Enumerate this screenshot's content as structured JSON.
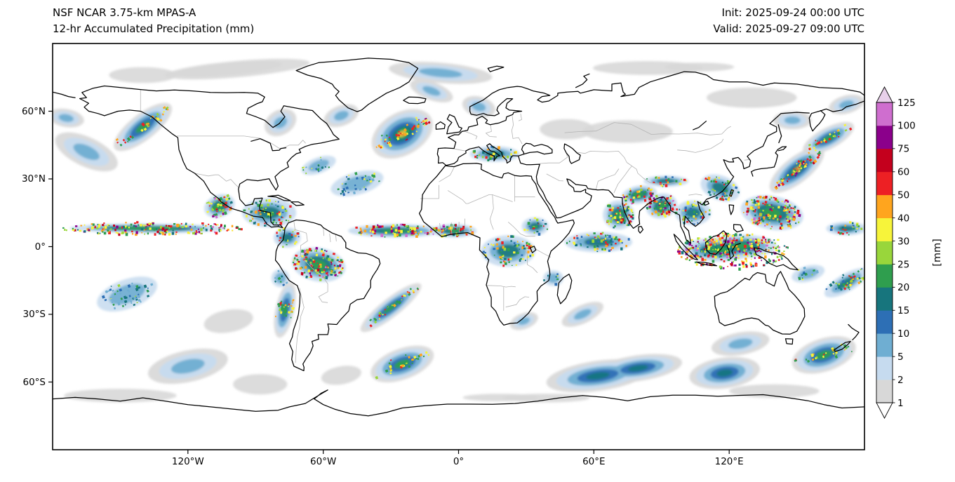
{
  "header": {
    "title_line1": "NSF NCAR 3.75-km MPAS-A",
    "title_line2": "12-hr Accumulated Precipitation (mm)",
    "init_text": "Init: 2025-09-24 00:00 UTC",
    "valid_text": "Valid: 2025-09-27 09:00 UTC"
  },
  "axes": {
    "lat_ticks": [
      {
        "label": "60°N",
        "value": 60
      },
      {
        "label": "30°N",
        "value": 30
      },
      {
        "label": "0°",
        "value": 0
      },
      {
        "label": "30°S",
        "value": -30
      },
      {
        "label": "60°S",
        "value": -60
      }
    ],
    "lon_ticks": [
      {
        "label": "120°W",
        "value": -120
      },
      {
        "label": "60°W",
        "value": -60
      },
      {
        "label": "0°",
        "value": 0
      },
      {
        "label": "60°E",
        "value": 60
      },
      {
        "label": "120°E",
        "value": 120
      }
    ]
  },
  "colorbar": {
    "unit_label": "[mm]",
    "tick_labels": [
      "1",
      "2",
      "5",
      "10",
      "15",
      "20",
      "25",
      "30",
      "40",
      "50",
      "60",
      "75",
      "100",
      "125"
    ]
  },
  "chart_data": {
    "type": "heatmap",
    "subtype": "global_precipitation_map",
    "projection": "equirectangular",
    "lon_range": [
      -180,
      180
    ],
    "lat_range": [
      -90,
      90
    ],
    "units": "mm",
    "model": "NSF NCAR 3.75-km MPAS-A",
    "title": "12-hr Accumulated Precipitation (mm)",
    "init_time": "2025-09-24 00:00 UTC",
    "valid_time": "2025-09-27 09:00 UTC",
    "levels_mm": [
      1,
      2,
      5,
      10,
      15,
      20,
      25,
      30,
      40,
      50,
      60,
      75,
      100,
      125
    ],
    "bin_colors": [
      "#d8d8d8",
      "#c6dbef",
      "#6faed2",
      "#2d6fb5",
      "#17757d",
      "#2f9e4e",
      "#99d63b",
      "#f7f43a",
      "#ffa51e",
      "#ed2024",
      "#c4001d",
      "#8b008b",
      "#cf6ecf"
    ],
    "under_color": "#ffffff",
    "over_color": "#e8d0ea",
    "legend_position": "right",
    "grid": false,
    "precip_regions": [
      {
        "name": "arctic-canada-gray",
        "lon": -95,
        "lat": 80,
        "w_deg": 80,
        "h_deg": 9,
        "rot_deg": -5,
        "intensity": "light",
        "style": "stratiform"
      },
      {
        "name": "beaufort-gray",
        "lon": -140,
        "lat": 76,
        "w_deg": 30,
        "h_deg": 7,
        "rot_deg": 0,
        "intensity": "light",
        "style": "stratiform"
      },
      {
        "name": "arctic-atlantic",
        "lon": -8,
        "lat": 77,
        "w_deg": 46,
        "h_deg": 9,
        "rot_deg": 5,
        "intensity": "moderate",
        "style": "stratiform"
      },
      {
        "name": "arctic-siberia",
        "lon": 95,
        "lat": 79,
        "w_deg": 55,
        "h_deg": 7,
        "rot_deg": 0,
        "intensity": "light",
        "style": "stratiform"
      },
      {
        "name": "east-siberia-gray",
        "lon": 130,
        "lat": 66,
        "w_deg": 40,
        "h_deg": 9,
        "rot_deg": 0,
        "intensity": "light",
        "style": "stratiform"
      },
      {
        "name": "chukchi-streaks",
        "lon": 172,
        "lat": 63,
        "w_deg": 16,
        "h_deg": 8,
        "rot_deg": -15,
        "intensity": "moderate",
        "style": "stratiform"
      },
      {
        "name": "bering-sea",
        "lon": -174,
        "lat": 57,
        "w_deg": 16,
        "h_deg": 8,
        "rot_deg": 10,
        "intensity": "moderate",
        "style": "stratiform"
      },
      {
        "name": "gulf-of-alaska-front",
        "lon": -140,
        "lat": 53,
        "w_deg": 30,
        "h_deg": 11,
        "rot_deg": -38,
        "intensity": "heavy",
        "style": "frontal"
      },
      {
        "name": "north-pacific-central",
        "lon": -165,
        "lat": 42,
        "w_deg": 30,
        "h_deg": 13,
        "rot_deg": 25,
        "intensity": "moderate",
        "style": "stratiform"
      },
      {
        "name": "hudson-bay-streaks",
        "lon": -79,
        "lat": 55,
        "w_deg": 15,
        "h_deg": 11,
        "rot_deg": -30,
        "intensity": "moderate",
        "style": "stratiform"
      },
      {
        "name": "labrador-sea",
        "lon": -52,
        "lat": 58,
        "w_deg": 16,
        "h_deg": 9,
        "rot_deg": -20,
        "intensity": "moderate",
        "style": "stratiform"
      },
      {
        "name": "iceland-greenland-sea",
        "lon": -12,
        "lat": 69,
        "w_deg": 20,
        "h_deg": 8,
        "rot_deg": 20,
        "intensity": "moderate",
        "style": "stratiform"
      },
      {
        "name": "scandinavia-streaks",
        "lon": 9,
        "lat": 62,
        "w_deg": 15,
        "h_deg": 9,
        "rot_deg": 15,
        "intensity": "moderate",
        "style": "stratiform"
      },
      {
        "name": "north-atlantic-storm",
        "lon": -25,
        "lat": 50,
        "w_deg": 28,
        "h_deg": 18,
        "rot_deg": -30,
        "intensity": "extreme",
        "style": "frontal"
      },
      {
        "name": "central-atlantic-showers",
        "lon": -45,
        "lat": 28,
        "w_deg": 24,
        "h_deg": 10,
        "rot_deg": -15,
        "intensity": "moderate",
        "style": "convective"
      },
      {
        "name": "gulf-stream-showers",
        "lon": -62,
        "lat": 36,
        "w_deg": 16,
        "h_deg": 7,
        "rot_deg": -20,
        "intensity": "moderate",
        "style": "convective"
      },
      {
        "name": "east-pacific-itcz",
        "lon": -135,
        "lat": 8,
        "w_deg": 85,
        "h_deg": 6,
        "rot_deg": 0,
        "intensity": "extreme",
        "style": "convective"
      },
      {
        "name": "mexico-west-coast-storm",
        "lon": -106,
        "lat": 18,
        "w_deg": 14,
        "h_deg": 10,
        "rot_deg": -20,
        "intensity": "extreme",
        "style": "convective"
      },
      {
        "name": "caribbean-central-america",
        "lon": -84,
        "lat": 15,
        "w_deg": 24,
        "h_deg": 13,
        "rot_deg": 0,
        "intensity": "heavy",
        "style": "convective"
      },
      {
        "name": "atlantic-itcz",
        "lon": -28,
        "lat": 7,
        "w_deg": 42,
        "h_deg": 6,
        "rot_deg": 0,
        "intensity": "extreme",
        "style": "convective"
      },
      {
        "name": "colombia-panama",
        "lon": -76,
        "lat": 4,
        "w_deg": 12,
        "h_deg": 9,
        "rot_deg": 0,
        "intensity": "heavy",
        "style": "convective"
      },
      {
        "name": "amazon-basin",
        "lon": -62,
        "lat": -8,
        "w_deg": 24,
        "h_deg": 15,
        "rot_deg": 10,
        "intensity": "extreme",
        "style": "convective"
      },
      {
        "name": "peru-coast-showers",
        "lon": -79,
        "lat": -14,
        "w_deg": 8,
        "h_deg": 8,
        "rot_deg": -30,
        "intensity": "moderate",
        "style": "convective"
      },
      {
        "name": "chile-coast-front",
        "lon": -77,
        "lat": -28,
        "w_deg": 8,
        "h_deg": 24,
        "rot_deg": 12,
        "intensity": "heavy",
        "style": "frontal"
      },
      {
        "name": "south-atlantic-convergence",
        "lon": -30,
        "lat": -27,
        "w_deg": 32,
        "h_deg": 8,
        "rot_deg": -38,
        "intensity": "heavy",
        "style": "frontal"
      },
      {
        "name": "se-pacific-stratus",
        "lon": -102,
        "lat": -33,
        "w_deg": 22,
        "h_deg": 10,
        "rot_deg": -10,
        "intensity": "light",
        "style": "stratiform"
      },
      {
        "name": "south-pacific-subtropics",
        "lon": -147,
        "lat": -21,
        "w_deg": 28,
        "h_deg": 13,
        "rot_deg": -20,
        "intensity": "moderate",
        "style": "convective"
      },
      {
        "name": "south-pacific-storm",
        "lon": -120,
        "lat": -53,
        "w_deg": 36,
        "h_deg": 14,
        "rot_deg": -12,
        "intensity": "moderate",
        "style": "stratiform"
      },
      {
        "name": "amundsen-sea-gray",
        "lon": -88,
        "lat": -61,
        "w_deg": 24,
        "h_deg": 9,
        "rot_deg": 0,
        "intensity": "light",
        "style": "stratiform"
      },
      {
        "name": "south-atlantic-storm",
        "lon": -25,
        "lat": -52,
        "w_deg": 28,
        "h_deg": 13,
        "rot_deg": -20,
        "intensity": "heavy",
        "style": "frontal"
      },
      {
        "name": "falklands-gray",
        "lon": -52,
        "lat": -57,
        "w_deg": 18,
        "h_deg": 8,
        "rot_deg": -10,
        "intensity": "light",
        "style": "stratiform"
      },
      {
        "name": "mediterranean-showers",
        "lon": 16,
        "lat": 41,
        "w_deg": 22,
        "h_deg": 7,
        "rot_deg": 0,
        "intensity": "heavy",
        "style": "convective"
      },
      {
        "name": "west-africa-guinea",
        "lon": -2,
        "lat": 7,
        "w_deg": 20,
        "h_deg": 6,
        "rot_deg": 0,
        "intensity": "extreme",
        "style": "convective"
      },
      {
        "name": "congo-basin",
        "lon": 22,
        "lat": -2,
        "w_deg": 24,
        "h_deg": 14,
        "rot_deg": 0,
        "intensity": "heavy",
        "style": "convective"
      },
      {
        "name": "ethiopia-sudan",
        "lon": 34,
        "lat": 9,
        "w_deg": 12,
        "h_deg": 8,
        "rot_deg": 0,
        "intensity": "heavy",
        "style": "convective"
      },
      {
        "name": "south-africa-coast",
        "lon": 29,
        "lat": -33,
        "w_deg": 13,
        "h_deg": 7,
        "rot_deg": -20,
        "intensity": "moderate",
        "style": "stratiform"
      },
      {
        "name": "mozambique-channel",
        "lon": 42,
        "lat": -14,
        "w_deg": 9,
        "h_deg": 7,
        "rot_deg": 0,
        "intensity": "moderate",
        "style": "convective"
      },
      {
        "name": "southwest-indian-ocean",
        "lon": 55,
        "lat": -30,
        "w_deg": 20,
        "h_deg": 8,
        "rot_deg": -25,
        "intensity": "moderate",
        "style": "stratiform"
      },
      {
        "name": "arabian-sea-india",
        "lon": 71,
        "lat": 14,
        "w_deg": 14,
        "h_deg": 13,
        "rot_deg": 0,
        "intensity": "extreme",
        "style": "convective"
      },
      {
        "name": "north-india-monsoon",
        "lon": 80,
        "lat": 23,
        "w_deg": 16,
        "h_deg": 8,
        "rot_deg": -10,
        "intensity": "extreme",
        "style": "convective"
      },
      {
        "name": "bay-of-bengal",
        "lon": 90,
        "lat": 18,
        "w_deg": 14,
        "h_deg": 11,
        "rot_deg": -15,
        "intensity": "extreme",
        "style": "convective"
      },
      {
        "name": "equatorial-indian-ocean",
        "lon": 62,
        "lat": 2,
        "w_deg": 30,
        "h_deg": 9,
        "rot_deg": 0,
        "intensity": "heavy",
        "style": "convective"
      },
      {
        "name": "himalaya-foothills",
        "lon": 92,
        "lat": 29,
        "w_deg": 20,
        "h_deg": 5,
        "rot_deg": 0,
        "intensity": "heavy",
        "style": "convective"
      },
      {
        "name": "central-asia-gray",
        "lon": 75,
        "lat": 51,
        "w_deg": 40,
        "h_deg": 10,
        "rot_deg": 0,
        "intensity": "light",
        "style": "stratiform"
      },
      {
        "name": "russia-steppe-gray",
        "lon": 48,
        "lat": 52,
        "w_deg": 24,
        "h_deg": 9,
        "rot_deg": 0,
        "intensity": "light",
        "style": "stratiform"
      },
      {
        "name": "indochina-monsoon",
        "lon": 104,
        "lat": 15,
        "w_deg": 16,
        "h_deg": 11,
        "rot_deg": 0,
        "intensity": "heavy",
        "style": "convective"
      },
      {
        "name": "south-china-taiwan",
        "lon": 116,
        "lat": 26,
        "w_deg": 18,
        "h_deg": 11,
        "rot_deg": 20,
        "intensity": "heavy",
        "style": "convective"
      },
      {
        "name": "maritime-continent",
        "lon": 122,
        "lat": -2,
        "w_deg": 52,
        "h_deg": 17,
        "rot_deg": 0,
        "intensity": "extreme",
        "style": "convective"
      },
      {
        "name": "philippine-sea-typhoon",
        "lon": 139,
        "lat": 15,
        "w_deg": 28,
        "h_deg": 15,
        "rot_deg": 10,
        "intensity": "extreme",
        "style": "convective"
      },
      {
        "name": "japan-kuroshio-front",
        "lon": 150,
        "lat": 34,
        "w_deg": 28,
        "h_deg": 11,
        "rot_deg": -38,
        "intensity": "extreme",
        "style": "frontal"
      },
      {
        "name": "kamchatka-front",
        "lon": 164,
        "lat": 48,
        "w_deg": 24,
        "h_deg": 9,
        "rot_deg": -28,
        "intensity": "heavy",
        "style": "frontal"
      },
      {
        "name": "okhotsk-sea",
        "lon": 148,
        "lat": 56,
        "w_deg": 17,
        "h_deg": 8,
        "rot_deg": 0,
        "intensity": "moderate",
        "style": "stratiform"
      },
      {
        "name": "central-pacific-itcz",
        "lon": 172,
        "lat": 8,
        "w_deg": 18,
        "h_deg": 6,
        "rot_deg": 0,
        "intensity": "heavy",
        "style": "convective"
      },
      {
        "name": "spcz",
        "lon": 172,
        "lat": -16,
        "w_deg": 22,
        "h_deg": 8,
        "rot_deg": -30,
        "intensity": "heavy",
        "style": "convective"
      },
      {
        "name": "coral-sea",
        "lon": 155,
        "lat": -12,
        "w_deg": 15,
        "h_deg": 7,
        "rot_deg": -15,
        "intensity": "moderate",
        "style": "convective"
      },
      {
        "name": "southern-indian-ocean-storm",
        "lon": 72,
        "lat": -56,
        "w_deg": 62,
        "h_deg": 18,
        "rot_deg": -8,
        "intensity": "heavy",
        "style": "stratiform"
      },
      {
        "name": "great-australian-bight",
        "lon": 125,
        "lat": -43,
        "w_deg": 26,
        "h_deg": 10,
        "rot_deg": -10,
        "intensity": "moderate",
        "style": "stratiform"
      },
      {
        "name": "south-of-australia-storm",
        "lon": 118,
        "lat": -56,
        "w_deg": 30,
        "h_deg": 13,
        "rot_deg": -8,
        "intensity": "heavy",
        "style": "stratiform"
      },
      {
        "name": "tasman-nz-storm",
        "lon": 162,
        "lat": -48,
        "w_deg": 28,
        "h_deg": 14,
        "rot_deg": -18,
        "intensity": "heavy",
        "style": "frontal"
      },
      {
        "name": "antarctic-coastal-west",
        "lon": -150,
        "lat": -66,
        "w_deg": 50,
        "h_deg": 6,
        "rot_deg": 0,
        "intensity": "light",
        "style": "stratiform"
      },
      {
        "name": "antarctic-coastal-east",
        "lon": 30,
        "lat": -67,
        "w_deg": 60,
        "h_deg": 6,
        "rot_deg": 0,
        "intensity": "light",
        "style": "stratiform"
      },
      {
        "name": "antarctic-coastal-aus",
        "lon": 140,
        "lat": -64,
        "w_deg": 40,
        "h_deg": 6,
        "rot_deg": 0,
        "intensity": "light",
        "style": "stratiform"
      }
    ]
  }
}
